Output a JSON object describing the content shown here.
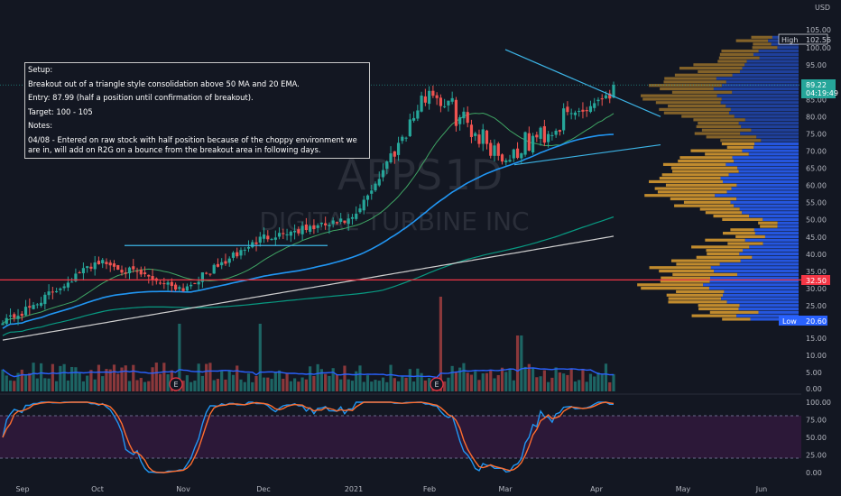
{
  "chart_data": {
    "type": "candlestick",
    "currency": "USD",
    "watermark": {
      "symbol": "APPS",
      "interval": "1D",
      "company": "DIGITAL TURBINE INC"
    },
    "time_axis": [
      "Sep",
      "Oct",
      "Nov",
      "Dec",
      "2021",
      "Feb",
      "Mar",
      "Apr",
      "May",
      "Jun"
    ],
    "price_axis": [
      100.0,
      95.0,
      90.0,
      85.0,
      80.0,
      75.0,
      70.0,
      65.0,
      60.0,
      55.0,
      50.0,
      45.0,
      40.0,
      35.0,
      30.0,
      25.0
    ],
    "price_axis_top": "105.00",
    "price_range": [
      20.6,
      105.0
    ],
    "volume_axis": [
      "15.00",
      "10.00",
      "5.00",
      "0.00"
    ],
    "oscillator_axis": [
      "100.00",
      "75.00",
      "50.00",
      "25.00",
      "0.00"
    ],
    "labels": {
      "high": {
        "title": "High",
        "value": "102.56"
      },
      "low": {
        "title": "Low",
        "value": "20.60"
      },
      "last": {
        "value": "89.22",
        "countdown": "04:19:49"
      },
      "level": {
        "value": "32.50"
      }
    },
    "earnings_markers": [
      "E",
      "E"
    ],
    "close_path": [
      [
        "Sep",
        23
      ],
      [
        "Oct",
        38
      ],
      [
        "Nov",
        30
      ],
      [
        "Dec",
        45
      ],
      [
        "2021",
        50
      ],
      [
        "Feb",
        88
      ],
      [
        "Mar",
        68
      ],
      [
        "Apr",
        85
      ],
      [
        "Apr",
        89.22
      ]
    ],
    "overlays": {
      "ma20_color": "#3fa564",
      "ma50_color": "#2196f3",
      "ema_color": "#089981",
      "ma200_color": "#cfcfcf"
    },
    "colors": {
      "up": "#26a69a",
      "down": "#ef5350",
      "trendline": "#3cb4e6",
      "level_line": "#f23645",
      "volume_profile_up": "#2962ff",
      "volume_profile_down": "#e0a030",
      "stoch_k": "#2196f3",
      "stoch_d": "#ff6d2e",
      "stoch_band": "#4a1d5c"
    }
  },
  "note": {
    "title": "Setup:",
    "setup": "Breakout out of a triangle style consolidation above 50 MA and 20 EMA.",
    "entry": "Entry: 87.99 (half a position until confirmation of breakout).",
    "target": "Target: 100 - 105",
    "notes_title": "Notes:",
    "notes_body": "04/08 - Entered on raw stock with half position because of the choppy environment we are in, will add on R2G on a bounce from the breakout area in following days."
  }
}
